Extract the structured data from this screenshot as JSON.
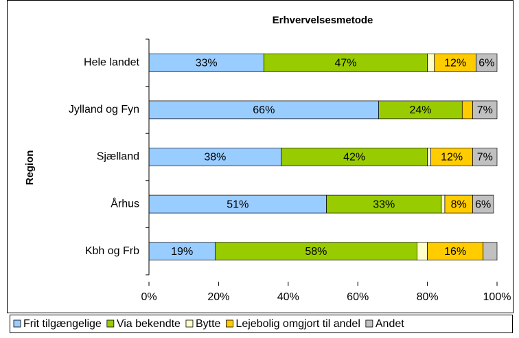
{
  "chart_data": {
    "type": "stacked-bar-horizontal",
    "title": "Erhvervelsesmetode",
    "y_label": "Region",
    "categories": [
      "Hele landet",
      "Jylland og Fyn",
      "Sjælland",
      "Århus",
      "Kbh og Frb"
    ],
    "series": [
      {
        "name": "Frit tilgængelige",
        "color": "#99ccff",
        "values": [
          33,
          66,
          38,
          51,
          19
        ],
        "value_labels": [
          "33%",
          "66%",
          "38%",
          "51%",
          "19%"
        ]
      },
      {
        "name": "Via bekendte",
        "color": "#99cc00",
        "values": [
          47,
          24,
          42,
          33,
          58
        ],
        "value_labels": [
          "47%",
          "24%",
          "42%",
          "33%",
          "58%"
        ]
      },
      {
        "name": "Bytte",
        "color": "#ffffcc",
        "values": [
          2,
          0,
          1,
          1,
          3
        ],
        "value_labels": [
          null,
          null,
          null,
          null,
          null
        ]
      },
      {
        "name": "Lejebolig omgjort til andel",
        "color": "#ffcc00",
        "values": [
          12,
          3,
          12,
          8,
          16
        ],
        "value_labels": [
          "12%",
          null,
          "12%",
          "8%",
          "16%"
        ]
      },
      {
        "name": "Andet",
        "color": "#c0c0c0",
        "values": [
          6,
          7,
          7,
          6,
          4
        ],
        "value_labels": [
          "6%",
          "7%",
          "7%",
          "6%",
          null
        ]
      }
    ],
    "xlim": [
      0,
      100
    ],
    "xticks": [
      {
        "value": 0,
        "label": "0%"
      },
      {
        "value": 20,
        "label": "20%"
      },
      {
        "value": 40,
        "label": "40%"
      },
      {
        "value": 60,
        "label": "60%"
      },
      {
        "value": 80,
        "label": "80%"
      },
      {
        "value": 100,
        "label": "100%"
      }
    ],
    "legend": "bottom"
  }
}
